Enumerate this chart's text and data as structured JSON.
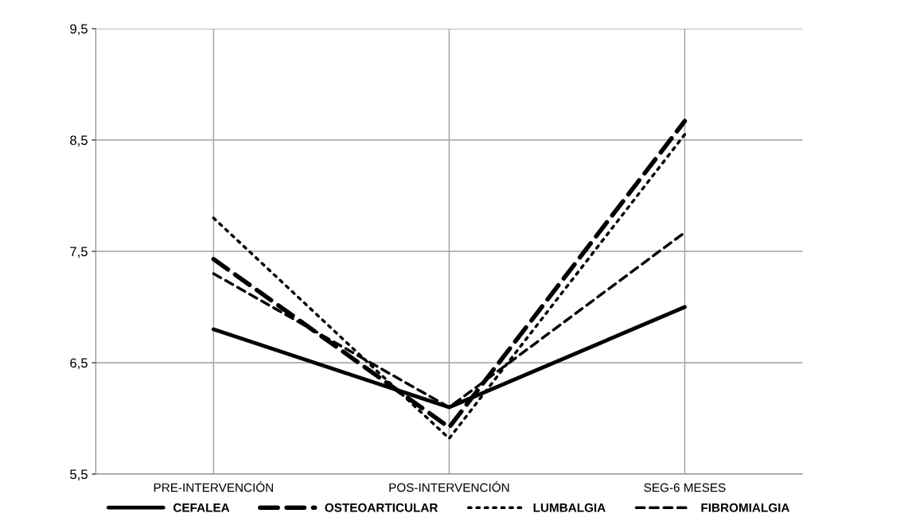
{
  "chart_data": {
    "type": "line",
    "categories": [
      "PRE-INTERVENCIÓN",
      "POS-INTERVENCIÓN",
      "SEG-6 MESES"
    ],
    "series": [
      {
        "name": "CEFALEA",
        "color": "#000000",
        "line_style": "solid",
        "values": [
          6.8,
          6.1,
          7.0
        ]
      },
      {
        "name": "OSTEOARTICULAR",
        "color": "#000000",
        "line_style": "longdash",
        "values": [
          7.43,
          5.92,
          8.67
        ]
      },
      {
        "name": "LUMBALGIA",
        "color": "#000000",
        "line_style": "dotted",
        "values": [
          7.8,
          5.82,
          8.55
        ]
      },
      {
        "name": "FIBROMIALGIA",
        "color": "#000000",
        "line_style": "dashed",
        "values": [
          7.3,
          6.1,
          7.67
        ]
      }
    ],
    "ylim": [
      5.5,
      9.5
    ],
    "yticks": [
      {
        "value": 5.5,
        "label": "5,5"
      },
      {
        "value": 6.5,
        "label": "6,5"
      },
      {
        "value": 7.5,
        "label": "7,5"
      },
      {
        "value": 8.5,
        "label": "8,5"
      },
      {
        "value": 9.5,
        "label": "9,5"
      }
    ],
    "grid": true,
    "legend": "bottom",
    "marker": "none"
  }
}
